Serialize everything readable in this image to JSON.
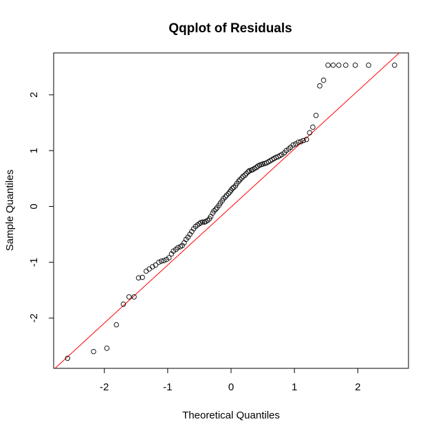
{
  "chart_data": {
    "type": "scatter",
    "title": "Qqplot of Residuals",
    "xlabel": "Theoretical Quantiles",
    "ylabel": "Sample Quantiles",
    "xlim": [
      -2.8,
      2.8
    ],
    "ylim": [
      -2.9,
      2.75
    ],
    "xticks": [
      -2,
      -1,
      0,
      1,
      2
    ],
    "yticks": [
      -2,
      -1,
      0,
      1,
      2
    ],
    "grid": false,
    "reference_line": {
      "intercept": -0.01,
      "slope": 1.04,
      "color": "#ff0000"
    },
    "points": {
      "x": [
        -2.58,
        -2.17,
        -1.96,
        -1.81,
        -1.7,
        -1.61,
        -1.53,
        -1.46,
        -1.4,
        -1.34,
        -1.29,
        -1.24,
        -1.19,
        -1.14,
        -1.1,
        -1.06,
        -1.02,
        -0.98,
        -0.94,
        -0.91,
        -0.87,
        -0.84,
        -0.8,
        -0.77,
        -0.74,
        -0.71,
        -0.68,
        -0.65,
        -0.62,
        -0.59,
        -0.56,
        -0.53,
        -0.5,
        -0.48,
        -0.45,
        -0.42,
        -0.4,
        -0.37,
        -0.34,
        -0.32,
        -0.29,
        -0.27,
        -0.24,
        -0.22,
        -0.19,
        -0.17,
        -0.14,
        -0.12,
        -0.09,
        -0.07,
        -0.04,
        -0.02,
        0.0,
        0.02,
        0.04,
        0.07,
        0.09,
        0.12,
        0.14,
        0.17,
        0.19,
        0.22,
        0.24,
        0.27,
        0.29,
        0.32,
        0.34,
        0.37,
        0.4,
        0.42,
        0.45,
        0.48,
        0.5,
        0.53,
        0.56,
        0.59,
        0.62,
        0.65,
        0.68,
        0.71,
        0.74,
        0.77,
        0.8,
        0.84,
        0.87,
        0.91,
        0.94,
        0.98,
        1.02,
        1.06,
        1.1,
        1.14,
        1.19,
        1.24,
        1.29,
        1.34,
        1.4,
        1.46,
        1.53,
        1.61,
        1.7,
        1.81,
        1.96,
        2.17,
        2.58
      ],
      "y": [
        -2.72,
        -2.6,
        -2.54,
        -2.12,
        -1.75,
        -1.62,
        -1.62,
        -1.28,
        -1.27,
        -1.16,
        -1.12,
        -1.08,
        -1.05,
        -1.0,
        -0.98,
        -0.97,
        -0.95,
        -0.92,
        -0.85,
        -0.8,
        -0.77,
        -0.74,
        -0.72,
        -0.7,
        -0.65,
        -0.59,
        -0.55,
        -0.5,
        -0.45,
        -0.4,
        -0.36,
        -0.33,
        -0.31,
        -0.29,
        -0.28,
        -0.28,
        -0.27,
        -0.25,
        -0.22,
        -0.18,
        -0.12,
        -0.08,
        -0.05,
        -0.02,
        0.02,
        0.06,
        0.1,
        0.14,
        0.17,
        0.2,
        0.23,
        0.26,
        0.29,
        0.32,
        0.34,
        0.37,
        0.41,
        0.45,
        0.48,
        0.51,
        0.54,
        0.56,
        0.59,
        0.62,
        0.64,
        0.65,
        0.66,
        0.68,
        0.7,
        0.72,
        0.74,
        0.75,
        0.76,
        0.77,
        0.78,
        0.8,
        0.82,
        0.84,
        0.86,
        0.88,
        0.89,
        0.91,
        0.93,
        0.96,
        1.0,
        1.03,
        1.06,
        1.1,
        1.12,
        1.15,
        1.16,
        1.18,
        1.2,
        1.32,
        1.42,
        1.63,
        2.16,
        2.26,
        2.53,
        2.53,
        2.53,
        2.53,
        2.53,
        2.53,
        2.53
      ]
    }
  }
}
